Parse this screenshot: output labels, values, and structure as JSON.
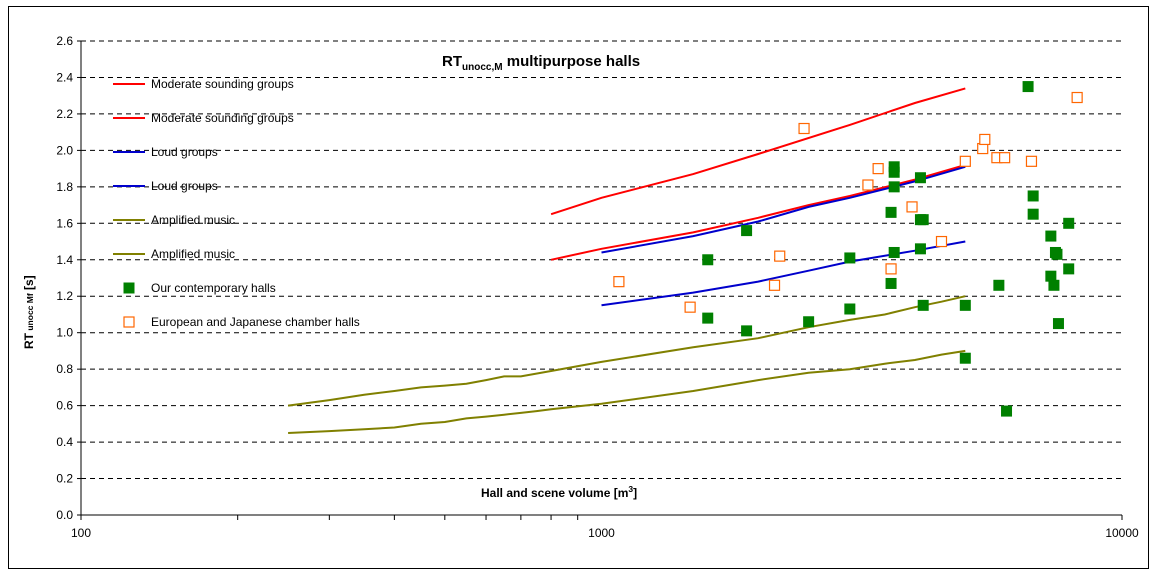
{
  "chart_data": {
    "type": "scatter",
    "title": "RTunocc,M multipurpose halls",
    "title_main": "RT",
    "title_sub": "unocc,M",
    "title_rest": " multipurpose halls",
    "xlabel": "Hall and scene volume [m3]",
    "xlabel_main": "Hall and scene volume [m",
    "xlabel_sup": "3",
    "xlabel_end": "]",
    "ylabel": "RT unocc Mf [s]",
    "ylabel_main": "RT",
    "ylabel_sub": " unocc Mf",
    "ylabel_end": " [s]",
    "x_scale": "log",
    "xlim": [
      100,
      10000
    ],
    "ylim": [
      0,
      2.6
    ],
    "x_ticks": [
      "100",
      "1000",
      "10000"
    ],
    "y_ticks": [
      "0.0",
      "0.2",
      "0.4",
      "0.6",
      "0.8",
      "1.0",
      "1.2",
      "1.4",
      "1.6",
      "1.8",
      "2.0",
      "2.2",
      "2.4",
      "2.6"
    ],
    "grid": "horizontal dashed",
    "legend_position": "left",
    "series": [
      {
        "name": "Moderate sounding groups",
        "kind": "line",
        "color": "#ff0000",
        "x": [
          800,
          1000,
          1500,
          2000,
          3000,
          4000,
          5000
        ],
        "y": [
          1.65,
          1.74,
          1.87,
          1.98,
          2.14,
          2.26,
          2.34
        ]
      },
      {
        "name": "Moderate sounding groups",
        "kind": "line",
        "color": "#ff0000",
        "x": [
          800,
          1000,
          1500,
          2000,
          2500,
          3000,
          4000,
          5000
        ],
        "y": [
          1.4,
          1.46,
          1.55,
          1.63,
          1.7,
          1.75,
          1.84,
          1.92
        ]
      },
      {
        "name": "Loud groups",
        "kind": "line",
        "color": "#0000cc",
        "x": [
          1000,
          1500,
          2000,
          2500,
          3000,
          4000,
          5000
        ],
        "y": [
          1.44,
          1.53,
          1.61,
          1.69,
          1.74,
          1.83,
          1.91
        ]
      },
      {
        "name": "Loud groups",
        "kind": "line",
        "color": "#0000cc",
        "x": [
          1000,
          1500,
          2000,
          2500,
          3000,
          4000,
          5000
        ],
        "y": [
          1.15,
          1.22,
          1.28,
          1.34,
          1.39,
          1.45,
          1.5
        ]
      },
      {
        "name": "Amplified music",
        "kind": "line",
        "color": "#808000",
        "x": [
          250,
          300,
          350,
          400,
          450,
          500,
          550,
          600,
          650,
          700,
          800,
          1000,
          1500,
          2000,
          2500,
          3000,
          3500,
          4000,
          4500,
          5000
        ],
        "y": [
          0.6,
          0.63,
          0.66,
          0.68,
          0.7,
          0.71,
          0.72,
          0.74,
          0.76,
          0.76,
          0.79,
          0.84,
          0.92,
          0.97,
          1.03,
          1.07,
          1.1,
          1.14,
          1.17,
          1.2
        ]
      },
      {
        "name": "Amplified music",
        "kind": "line",
        "color": "#808000",
        "x": [
          250,
          300,
          350,
          400,
          450,
          500,
          550,
          600,
          650,
          700,
          750,
          800,
          1000,
          1500,
          2000,
          2500,
          3000,
          3500,
          4000,
          4500,
          5000
        ],
        "y": [
          0.45,
          0.46,
          0.47,
          0.48,
          0.5,
          0.51,
          0.53,
          0.54,
          0.55,
          0.56,
          0.57,
          0.58,
          0.61,
          0.68,
          0.74,
          0.78,
          0.8,
          0.83,
          0.85,
          0.88,
          0.9
        ]
      },
      {
        "name": "Our contemporary halls",
        "kind": "marker-filled",
        "color": "#008000",
        "x": [
          1600,
          1600,
          1900,
          1900,
          2500,
          3000,
          3000,
          3600,
          3600,
          3650,
          3650,
          3650,
          3650,
          4100,
          4100,
          4100,
          4150,
          4150,
          5000,
          5000,
          5800,
          6000,
          6600,
          6750,
          6750,
          7300,
          7300,
          7400,
          7450,
          7500,
          7550,
          7900,
          7900
        ],
        "y": [
          1.4,
          1.08,
          1.56,
          1.01,
          1.06,
          1.41,
          1.13,
          1.66,
          1.27,
          1.91,
          1.88,
          1.8,
          1.44,
          1.85,
          1.62,
          1.46,
          1.62,
          1.15,
          1.15,
          0.86,
          1.26,
          0.57,
          2.35,
          1.75,
          1.65,
          1.53,
          1.31,
          1.26,
          1.44,
          1.43,
          1.05,
          1.6,
          1.35
        ]
      },
      {
        "name": "European and Japanese chamber halls",
        "kind": "marker-open",
        "color": "#ff6600",
        "x": [
          1080,
          1480,
          2150,
          2200,
          2450,
          3250,
          3400,
          3600,
          3950,
          4500,
          5000,
          5400,
          5450,
          5750,
          5950,
          6700,
          8200
        ],
        "y": [
          1.28,
          1.14,
          1.26,
          1.42,
          2.12,
          1.81,
          1.9,
          1.35,
          1.69,
          1.5,
          1.94,
          2.01,
          2.06,
          1.96,
          1.96,
          1.94,
          2.29
        ]
      }
    ]
  }
}
